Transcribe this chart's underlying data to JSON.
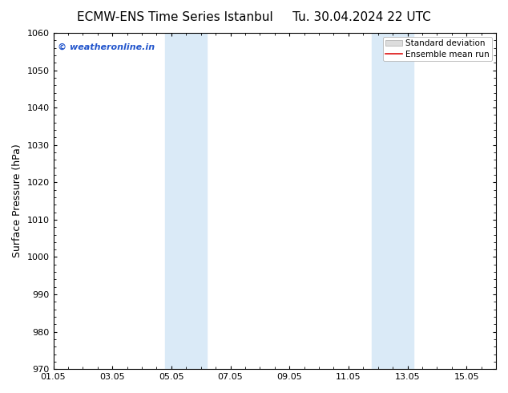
{
  "title": "ECMW-ENS Time Series Istanbul     Tu. 30.04.2024 22 UTC",
  "ylabel": "Surface Pressure (hPa)",
  "ylim": [
    970,
    1060
  ],
  "yticks": [
    970,
    980,
    990,
    1000,
    1010,
    1020,
    1030,
    1040,
    1050,
    1060
  ],
  "xlim": [
    0,
    15
  ],
  "xtick_labels": [
    "01.05",
    "03.05",
    "05.05",
    "07.05",
    "09.05",
    "11.05",
    "13.05",
    "15.05"
  ],
  "xtick_positions": [
    0,
    2,
    4,
    6,
    8,
    10,
    12,
    14
  ],
  "shaded_regions": [
    {
      "x_start": 3.8,
      "x_end": 5.2
    },
    {
      "x_start": 10.8,
      "x_end": 12.2
    }
  ],
  "shade_color": "#daeaf7",
  "watermark_text": "© weatheronline.in",
  "watermark_color": "#2255cc",
  "legend_std_label": "Standard deviation",
  "legend_mean_label": "Ensemble mean run",
  "legend_std_facecolor": "#dddddd",
  "legend_std_edgecolor": "#aaaaaa",
  "legend_mean_color": "#dd1111",
  "bg_color": "#ffffff",
  "plot_bg_color": "#ffffff",
  "title_fontsize": 11,
  "label_fontsize": 9,
  "tick_fontsize": 8,
  "watermark_fontsize": 8,
  "legend_fontsize": 7.5
}
